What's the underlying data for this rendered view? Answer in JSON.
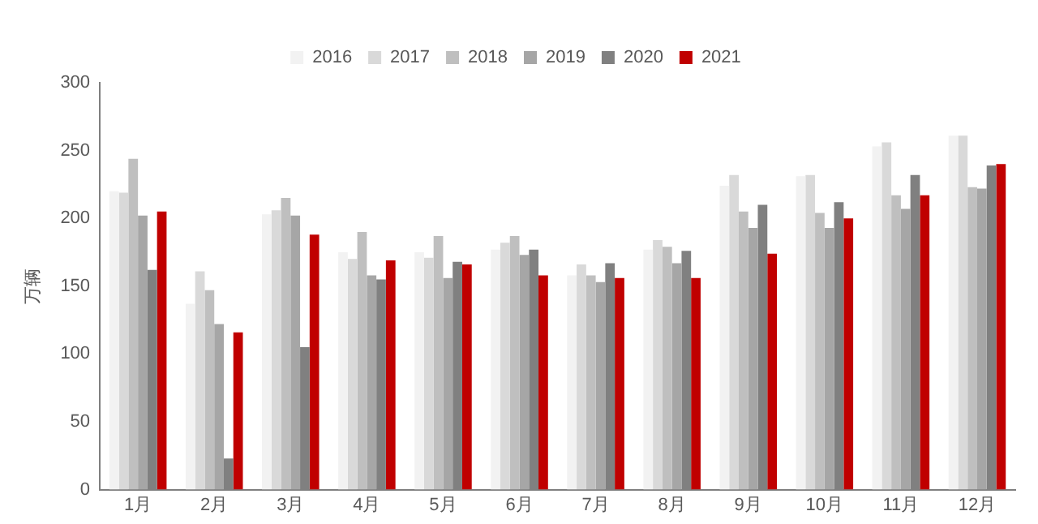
{
  "chart_data": {
    "type": "bar",
    "ylabel": "万辆",
    "categories": [
      "1月",
      "2月",
      "3月",
      "4月",
      "5月",
      "6月",
      "7月",
      "8月",
      "9月",
      "10月",
      "11月",
      "12月"
    ],
    "series": [
      {
        "name": "2016",
        "color": "#f2f2f2",
        "values": [
          220,
          137,
          203,
          175,
          175,
          177,
          158,
          177,
          224,
          231,
          253,
          261
        ]
      },
      {
        "name": "2017",
        "color": "#d9d9d9",
        "values": [
          219,
          161,
          206,
          170,
          171,
          182,
          166,
          184,
          232,
          232,
          256,
          261
        ]
      },
      {
        "name": "2018",
        "color": "#bfbfbf",
        "values": [
          244,
          147,
          215,
          190,
          187,
          187,
          158,
          179,
          205,
          204,
          217,
          223
        ]
      },
      {
        "name": "2019",
        "color": "#a6a6a6",
        "values": [
          202,
          122,
          202,
          158,
          156,
          173,
          153,
          167,
          193,
          193,
          207,
          222
        ]
      },
      {
        "name": "2020",
        "color": "#808080",
        "values": [
          162,
          23,
          105,
          155,
          168,
          177,
          167,
          176,
          210,
          212,
          232,
          239
        ]
      },
      {
        "name": "2021",
        "color": "#c00000",
        "values": [
          205,
          116,
          188,
          169,
          166,
          158,
          156,
          156,
          174,
          200,
          217,
          240
        ]
      }
    ],
    "ylim": [
      0,
      300
    ],
    "yticks": [
      0,
      50,
      100,
      150,
      200,
      250,
      300
    ],
    "grid": false,
    "legend": "top"
  }
}
